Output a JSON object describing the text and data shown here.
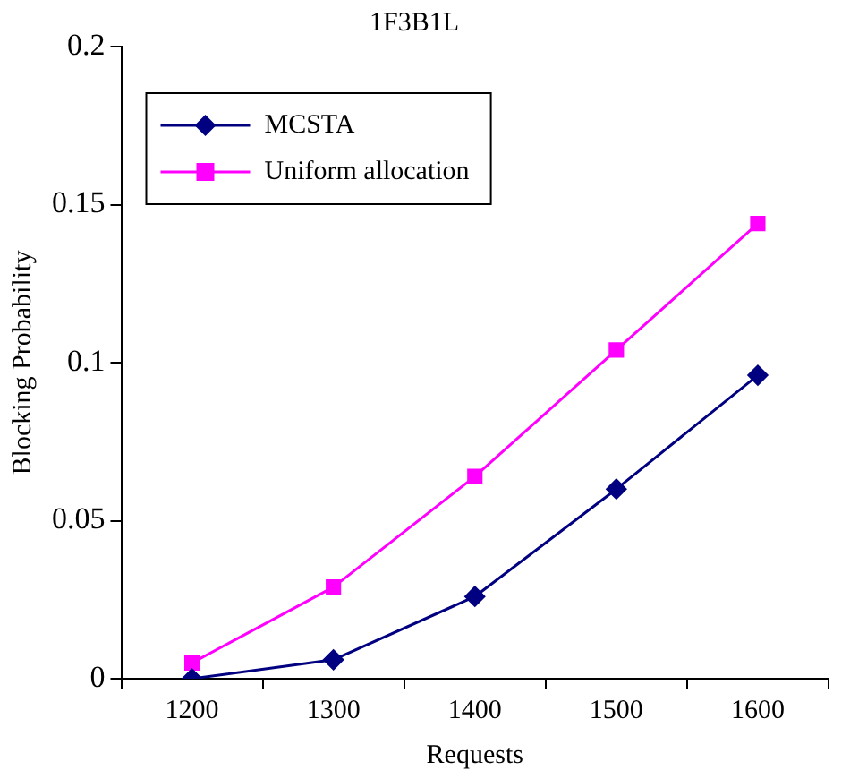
{
  "chart_data": {
    "type": "line",
    "title": "1F3B1L",
    "xlabel": "Requests",
    "ylabel": "Blocking Probability",
    "categories": [
      "1200",
      "1300",
      "1400",
      "1500",
      "1600"
    ],
    "series": [
      {
        "name": "MCSTA",
        "color": "#000080",
        "marker": "diamond",
        "values": [
          0,
          0.006,
          0.026,
          0.06,
          0.096
        ]
      },
      {
        "name": "Uniform allocation",
        "color": "#ff00ff",
        "marker": "square",
        "values": [
          0.005,
          0.029,
          0.064,
          0.104,
          0.144
        ]
      }
    ],
    "ylim": [
      0,
      0.2
    ],
    "yticks": [
      0,
      0.05,
      0.1,
      0.15,
      0.2
    ],
    "grid": false,
    "legend": "top left",
    "line_style": "solid"
  }
}
